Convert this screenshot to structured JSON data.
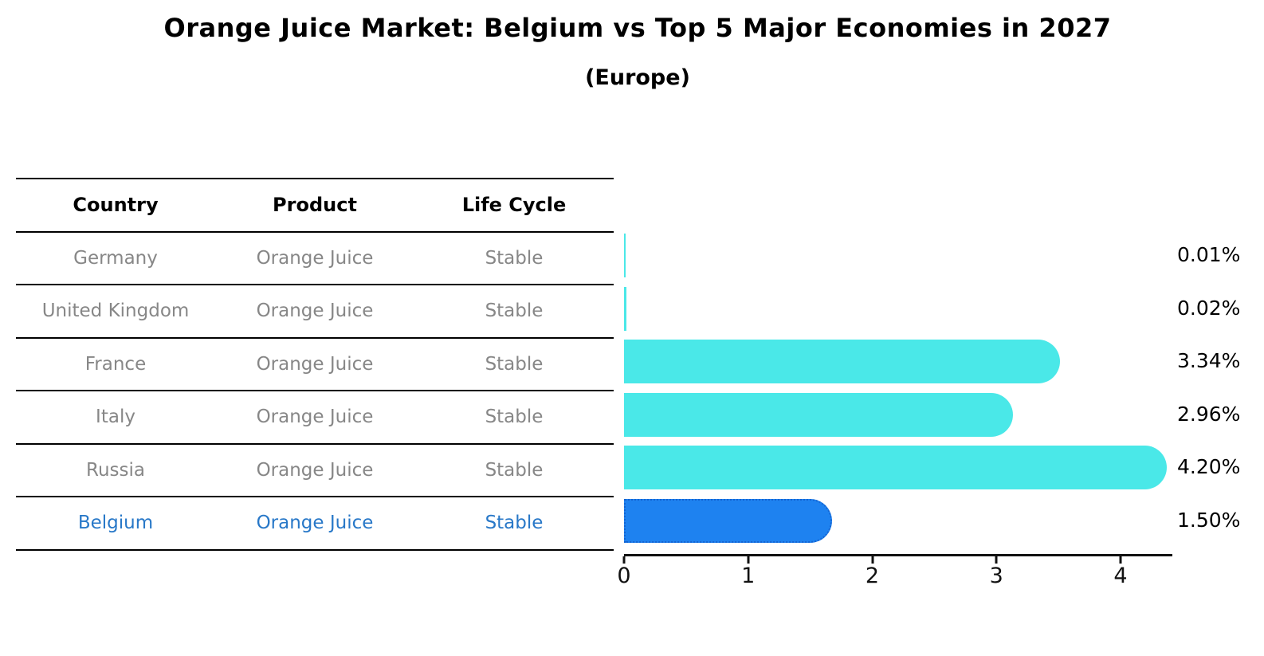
{
  "title": "Orange Juice Market: Belgium vs Top 5 Major Economies in 2027",
  "subtitle": "(Europe)",
  "table": {
    "headers": [
      "Country",
      "Product",
      "Life Cycle"
    ],
    "rows": [
      {
        "country": "Germany",
        "product": "Orange Juice",
        "life_cycle": "Stable"
      },
      {
        "country": "United Kingdom",
        "product": "Orange Juice",
        "life_cycle": "Stable"
      },
      {
        "country": "France",
        "product": "Orange Juice",
        "life_cycle": "Stable"
      },
      {
        "country": "Italy",
        "product": "Orange Juice",
        "life_cycle": "Stable"
      },
      {
        "country": "Russia",
        "product": "Orange Juice",
        "life_cycle": "Stable"
      },
      {
        "country": "Belgium",
        "product": "Orange Juice",
        "life_cycle": "Stable"
      }
    ]
  },
  "chart_data": {
    "type": "bar",
    "orientation": "horizontal",
    "title": "Orange Juice Market: Belgium vs Top 5 Major Economies in 2027 (Europe)",
    "categories": [
      "Germany",
      "United Kingdom",
      "France",
      "Italy",
      "Russia",
      "Belgium"
    ],
    "values": [
      0.01,
      0.02,
      3.34,
      2.96,
      4.2,
      1.5
    ],
    "value_labels": [
      "0.01%",
      "0.02%",
      "3.34%",
      "2.96%",
      "4.20%",
      "1.50%"
    ],
    "unit": "percent",
    "x_ticks": [
      0,
      1,
      2,
      3,
      4
    ],
    "x_tick_labels": [
      "0",
      "1",
      "2",
      "3",
      "4"
    ],
    "xlim": [
      0,
      4.4
    ],
    "grid": false,
    "legend": false,
    "bar_color": "#4AE8E8",
    "highlight_index": 5,
    "highlight_color": "#1E82F0",
    "highlight_border_color": "#1464D2",
    "highlight_text_color": "#2878C8",
    "muted_text_color": "#878787"
  }
}
